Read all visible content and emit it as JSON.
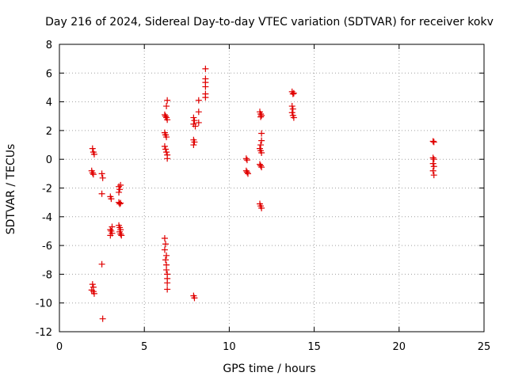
{
  "chart_data": {
    "type": "scatter",
    "title": "Day 216 of 2024, Sidereal Day-to-day VTEC variation (SDTVAR) for receiver kokv",
    "xlabel": "GPS time / hours",
    "ylabel": "SDTVAR / TECUs",
    "xlim": [
      0,
      25
    ],
    "ylim": [
      -12,
      8
    ],
    "xticks": [
      0,
      5,
      10,
      15,
      20,
      25
    ],
    "yticks": [
      -12,
      -10,
      -8,
      -6,
      -4,
      -2,
      0,
      2,
      4,
      6,
      8
    ],
    "grid": true,
    "marker": "plus",
    "color": "#e00000",
    "series": [
      {
        "name": "SDTVAR",
        "points": [
          [
            1.95,
            0.75
          ],
          [
            2.0,
            0.5
          ],
          [
            2.05,
            0.35
          ],
          [
            1.9,
            -0.8
          ],
          [
            1.95,
            -0.95
          ],
          [
            2.0,
            -1.05
          ],
          [
            1.95,
            -8.7
          ],
          [
            2.0,
            -8.9
          ],
          [
            1.9,
            -9.1
          ],
          [
            2.0,
            -9.2
          ],
          [
            2.05,
            -9.35
          ],
          [
            2.5,
            -1.0
          ],
          [
            2.55,
            -1.3
          ],
          [
            2.5,
            -2.4
          ],
          [
            2.5,
            -7.3
          ],
          [
            2.55,
            -11.1
          ],
          [
            3.0,
            -2.6
          ],
          [
            3.05,
            -2.75
          ],
          [
            3.1,
            -4.7
          ],
          [
            3.0,
            -4.9
          ],
          [
            3.05,
            -5.0
          ],
          [
            3.1,
            -5.15
          ],
          [
            3.0,
            -5.3
          ],
          [
            3.5,
            -1.9
          ],
          [
            3.55,
            -2.1
          ],
          [
            3.5,
            -2.3
          ],
          [
            3.6,
            -1.8
          ],
          [
            3.5,
            -3.0
          ],
          [
            3.55,
            -3.1
          ],
          [
            3.6,
            -3.05
          ],
          [
            3.5,
            -4.6
          ],
          [
            3.55,
            -4.75
          ],
          [
            3.6,
            -4.9
          ],
          [
            3.55,
            -5.05
          ],
          [
            3.6,
            -5.2
          ],
          [
            3.65,
            -5.3
          ],
          [
            6.2,
            3.1
          ],
          [
            6.25,
            3.0
          ],
          [
            6.3,
            2.9
          ],
          [
            6.35,
            2.75
          ],
          [
            6.3,
            3.7
          ],
          [
            6.35,
            4.1
          ],
          [
            6.2,
            1.85
          ],
          [
            6.25,
            1.7
          ],
          [
            6.3,
            1.55
          ],
          [
            6.2,
            0.9
          ],
          [
            6.25,
            0.7
          ],
          [
            6.3,
            0.5
          ],
          [
            6.35,
            0.3
          ],
          [
            6.35,
            0.05
          ],
          [
            6.2,
            -5.5
          ],
          [
            6.25,
            -5.9
          ],
          [
            6.2,
            -6.3
          ],
          [
            6.3,
            -6.7
          ],
          [
            6.25,
            -7.0
          ],
          [
            6.3,
            -7.35
          ],
          [
            6.3,
            -7.7
          ],
          [
            6.35,
            -8.0
          ],
          [
            6.35,
            -8.3
          ],
          [
            6.35,
            -8.6
          ],
          [
            6.35,
            -9.05
          ],
          [
            7.9,
            2.9
          ],
          [
            7.95,
            2.7
          ],
          [
            7.9,
            2.45
          ],
          [
            8.0,
            2.3
          ],
          [
            7.9,
            1.35
          ],
          [
            7.95,
            1.2
          ],
          [
            7.9,
            1.0
          ],
          [
            7.9,
            -9.5
          ],
          [
            7.95,
            -9.65
          ],
          [
            8.2,
            4.1
          ],
          [
            8.2,
            3.3
          ],
          [
            8.2,
            2.55
          ],
          [
            8.6,
            6.3
          ],
          [
            8.6,
            5.6
          ],
          [
            8.6,
            5.35
          ],
          [
            8.6,
            5.05
          ],
          [
            8.6,
            4.55
          ],
          [
            8.6,
            4.3
          ],
          [
            11.0,
            0.05
          ],
          [
            11.05,
            -0.05
          ],
          [
            11.0,
            -0.8
          ],
          [
            11.05,
            -0.9
          ],
          [
            11.1,
            -1.0
          ],
          [
            11.8,
            3.3
          ],
          [
            11.85,
            3.15
          ],
          [
            11.9,
            3.05
          ],
          [
            11.85,
            2.95
          ],
          [
            11.9,
            1.8
          ],
          [
            11.9,
            1.3
          ],
          [
            11.85,
            1.0
          ],
          [
            11.8,
            0.75
          ],
          [
            11.85,
            0.6
          ],
          [
            11.9,
            0.45
          ],
          [
            11.8,
            -0.35
          ],
          [
            11.85,
            -0.45
          ],
          [
            11.9,
            -0.55
          ],
          [
            11.8,
            -3.1
          ],
          [
            11.85,
            -3.25
          ],
          [
            11.9,
            -3.4
          ],
          [
            13.7,
            4.7
          ],
          [
            13.75,
            4.55
          ],
          [
            13.8,
            4.6
          ],
          [
            13.7,
            3.7
          ],
          [
            13.75,
            3.5
          ],
          [
            13.7,
            3.25
          ],
          [
            13.75,
            3.05
          ],
          [
            13.8,
            2.9
          ],
          [
            22.0,
            1.25
          ],
          [
            22.05,
            1.2
          ],
          [
            22.0,
            0.1
          ],
          [
            22.05,
            0.0
          ],
          [
            22.0,
            -0.3
          ],
          [
            22.05,
            -0.5
          ],
          [
            22.0,
            -0.8
          ],
          [
            22.05,
            -1.1
          ]
        ]
      }
    ]
  }
}
